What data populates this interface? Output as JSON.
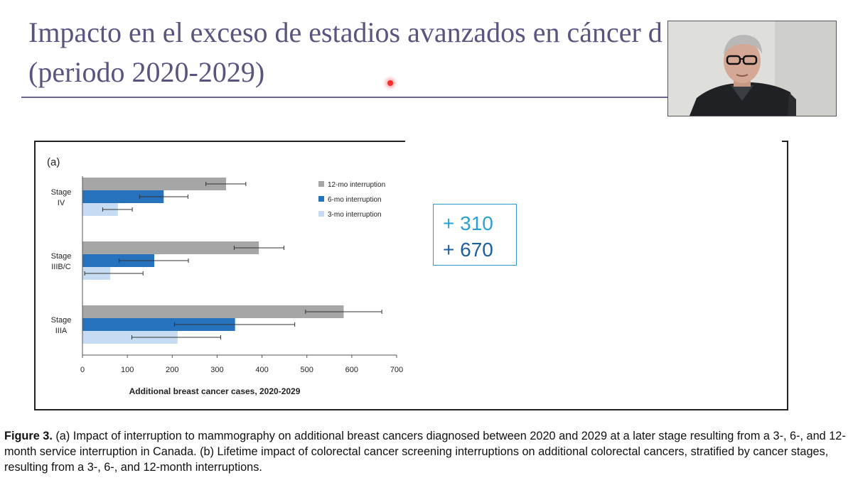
{
  "slide": {
    "title_line1": "Impacto en el exceso de estadios avanzados en cáncer d",
    "title_line2": "(periodo 2020-2029)"
  },
  "callout": {
    "line1": "+ 310",
    "line2": "+ 670"
  },
  "caption": {
    "label": "Figure 3.",
    "text": " (a) Impact of interruption to mammography on additional breast cancers diagnosed between 2020 and 2029 at a later stage resulting from a 3-, 6-, and 12-month service interruption in Canada. (b) Lifetime impact of colorectal cancer screening interruptions on additional colorectal cancers, stratified by cancer stages, resulting from a 3-, 6-, and 12-month interruptions."
  },
  "colors": {
    "12mo": "#a6a6a6",
    "6mo": "#2672bd",
    "3mo": "#c5dcf2",
    "title": "#5b5480",
    "callout_border": "#2a9bc9"
  },
  "chart_data": {
    "type": "bar",
    "orientation": "horizontal",
    "panel_label": "(a)",
    "categories": [
      [
        "Stage",
        "IV"
      ],
      [
        "Stage",
        "IIIB/C"
      ],
      [
        "Stage",
        "IIIA"
      ]
    ],
    "series": [
      {
        "name": "12-mo interruption",
        "color": "#a6a6a6",
        "values": [
          320,
          393,
          582
        ],
        "err_low": [
          275,
          338,
          497
        ],
        "err_high": [
          364,
          449,
          667
        ]
      },
      {
        "name": "6-mo interruption",
        "color": "#2672bd",
        "values": [
          181,
          160,
          340
        ],
        "err_low": [
          127,
          82,
          205
        ],
        "err_high": [
          235,
          236,
          473
        ]
      },
      {
        "name": "3-mo interruption",
        "color": "#c5dcf2",
        "values": [
          79,
          62,
          212
        ],
        "err_low": [
          45,
          5,
          110
        ],
        "err_high": [
          111,
          135,
          308
        ]
      }
    ],
    "xlabel": "Additional breast cancer cases, 2020-2029",
    "xlim": [
      0,
      700
    ],
    "xticks": [
      0,
      100,
      200,
      300,
      400,
      500,
      600,
      700
    ],
    "grid": false,
    "legend": "top-right"
  }
}
